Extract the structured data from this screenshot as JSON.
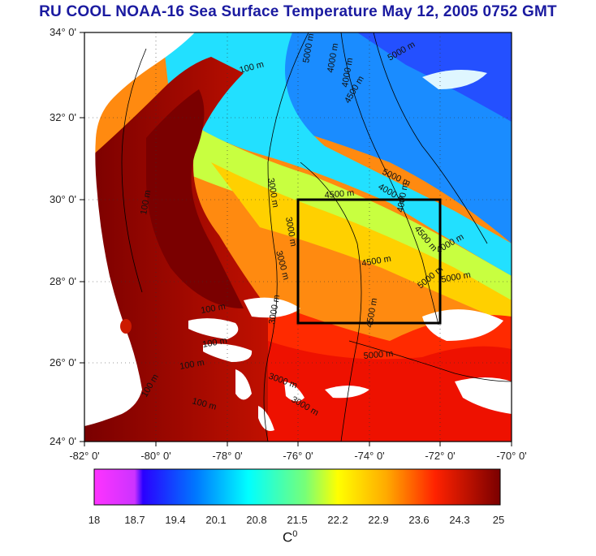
{
  "title": "RU COOL  NOAA-16 Sea Surface Temperature May 12, 2005 0752 GMT",
  "map": {
    "lat_labels": [
      "34° 0'",
      "32° 0'",
      "30° 0'",
      "28° 0'",
      "26° 0'",
      "24° 0'"
    ],
    "lon_labels": [
      "-82° 0'",
      "-80° 0'",
      "-78° 0'",
      "-76° 0'",
      "-74° 0'",
      "-72° 0'",
      "-70° 0'"
    ],
    "lat_range": [
      24,
      34
    ],
    "lon_range": [
      -82,
      -70
    ],
    "study_box": {
      "lon_min": -76,
      "lon_max": -72,
      "lat_min": 27,
      "lat_max": 30
    },
    "contour_labels": [
      "100 m",
      "100 m",
      "100 m",
      "100 m",
      "100 m",
      "100 m",
      "100 m",
      "3000 m",
      "3000 m",
      "3000 m",
      "3000 m",
      "3000 m",
      "3000 m",
      "4000 m",
      "4000 m",
      "4000 m",
      "4000 m",
      "4000 m",
      "4500 m",
      "4500 m",
      "4500 m",
      "4500 m",
      "4500 m",
      "5000 m",
      "5000 m",
      "5000 m",
      "5000 m",
      "5000 m",
      "5000 m"
    ]
  },
  "colorbar": {
    "ticks": [
      "18",
      "18.7",
      "19.4",
      "20.1",
      "20.8",
      "21.5",
      "22.2",
      "22.9",
      "23.6",
      "24.3",
      "25"
    ],
    "unit": "C",
    "unit_sup": "0",
    "colors": {
      "min": "#ff00ff",
      "blue": "#0000ff",
      "cyan": "#00ffff",
      "green": "#66ff66",
      "yellow": "#ffff00",
      "orange": "#ff9900",
      "red": "#ff0000",
      "max": "#7a0000"
    }
  },
  "colors": {
    "land": "#ffffff",
    "frame": "#000000",
    "title": "#1a1aa0"
  }
}
